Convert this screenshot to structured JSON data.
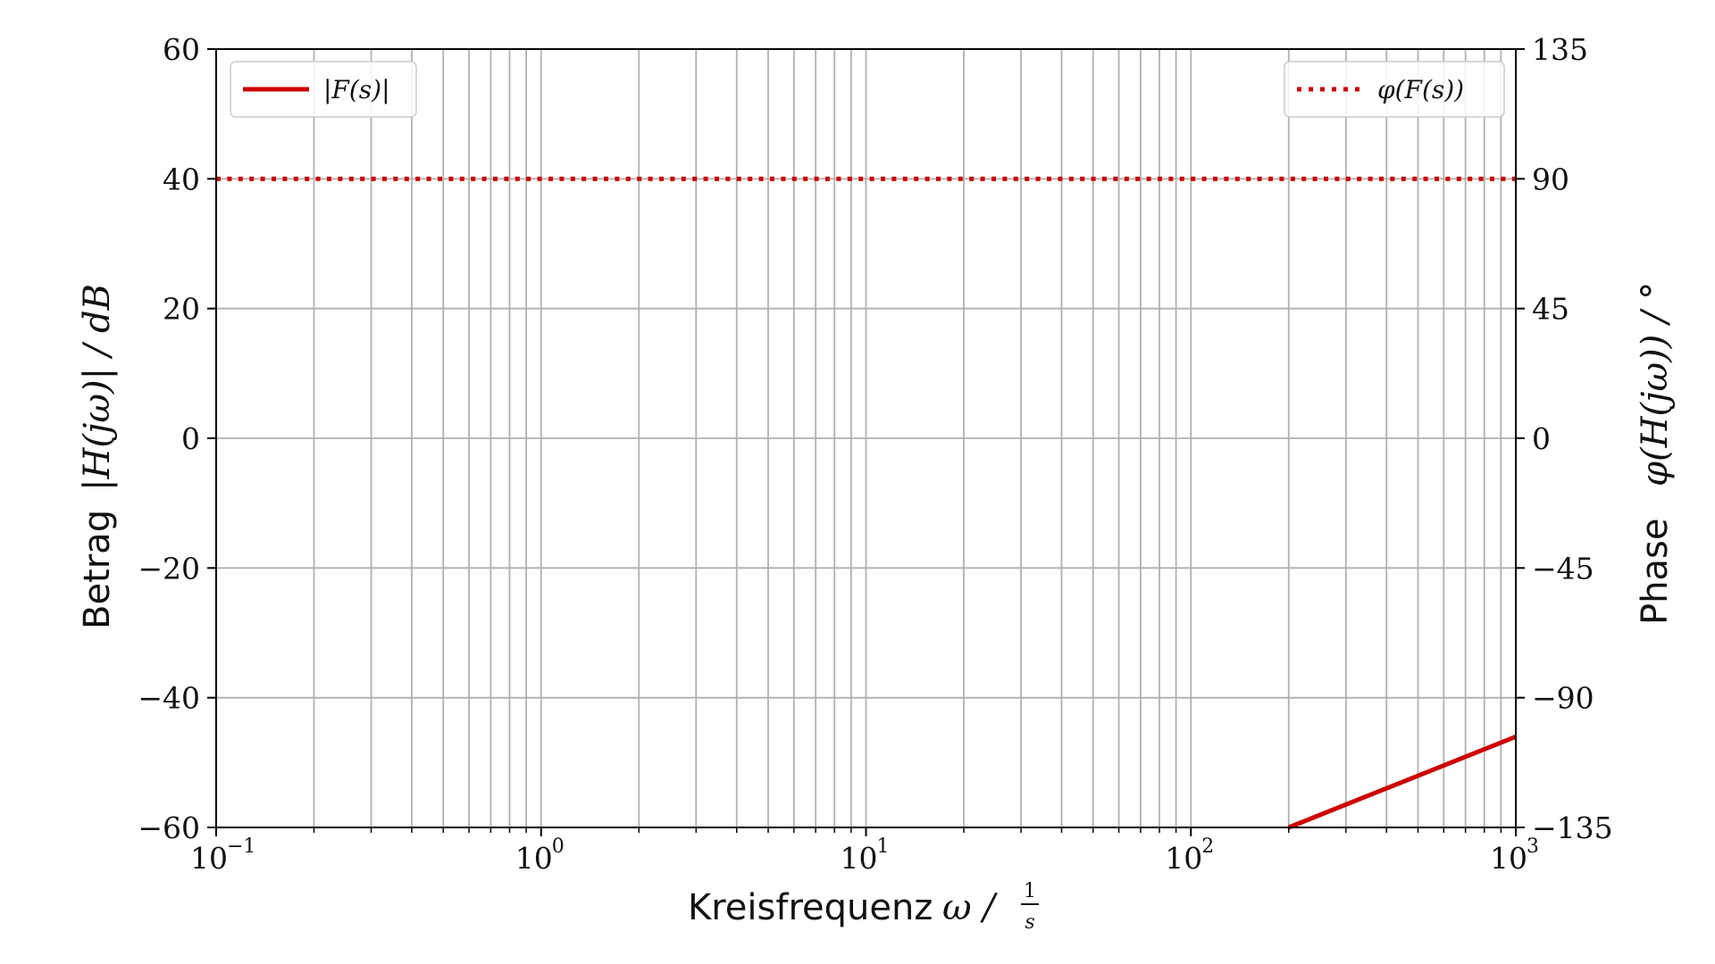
{
  "chart_data": {
    "type": "line",
    "xscale": "log",
    "xlim": [
      0.1,
      1000
    ],
    "ylim_left": [
      -60,
      60
    ],
    "ylim_right": [
      -135,
      135
    ],
    "grid": true,
    "x_ticks": [
      {
        "base": "10",
        "exp": "−1",
        "value": 0.1
      },
      {
        "base": "10",
        "exp": "0",
        "value": 1
      },
      {
        "base": "10",
        "exp": "1",
        "value": 10
      },
      {
        "base": "10",
        "exp": "2",
        "value": 100
      },
      {
        "base": "10",
        "exp": "3",
        "value": 1000
      }
    ],
    "y_ticks_left": [
      {
        "label": "60",
        "value": 60
      },
      {
        "label": "40",
        "value": 40
      },
      {
        "label": "20",
        "value": 20
      },
      {
        "label": "0",
        "value": 0
      },
      {
        "label": "−20",
        "value": -20
      },
      {
        "label": "−40",
        "value": -40
      },
      {
        "label": "−60",
        "value": -60
      }
    ],
    "y_ticks_right": [
      {
        "label": "135",
        "value": 135
      },
      {
        "label": "90",
        "value": 90
      },
      {
        "label": "45",
        "value": 45
      },
      {
        "label": "0",
        "value": 0
      },
      {
        "label": "−45",
        "value": -45
      },
      {
        "label": "−90",
        "value": -90
      },
      {
        "label": "−135",
        "value": -135
      }
    ],
    "xlabel": {
      "text": "Kreisfrequenz",
      "math": "ω  /",
      "frac_num": "1",
      "frac_den": "s"
    },
    "ylabel_left": {
      "text": "Betrag",
      "math": "|H(jω)|  /  dB"
    },
    "ylabel_right": {
      "text": "Phase",
      "math": "φ(H(jω))  /  °"
    },
    "series": [
      {
        "name": "|F(s)|",
        "axis": "left",
        "style": "solid",
        "color": "#cc0000",
        "x": [
          200,
          1000
        ],
        "y": [
          -60,
          -46
        ]
      },
      {
        "name": "φ(F(s))",
        "axis": "right",
        "style": "dotted",
        "color": "#cc0000",
        "x": [
          0.1,
          1000
        ],
        "y": [
          90,
          90
        ]
      }
    ],
    "legends": [
      {
        "series": "|F(s)|",
        "placement": "top-left"
      },
      {
        "series": "φ(F(s))",
        "placement": "top-right"
      }
    ],
    "colors": {
      "line": "#cc0000",
      "grid": "#b0b0b0",
      "axis": "#000000"
    }
  }
}
